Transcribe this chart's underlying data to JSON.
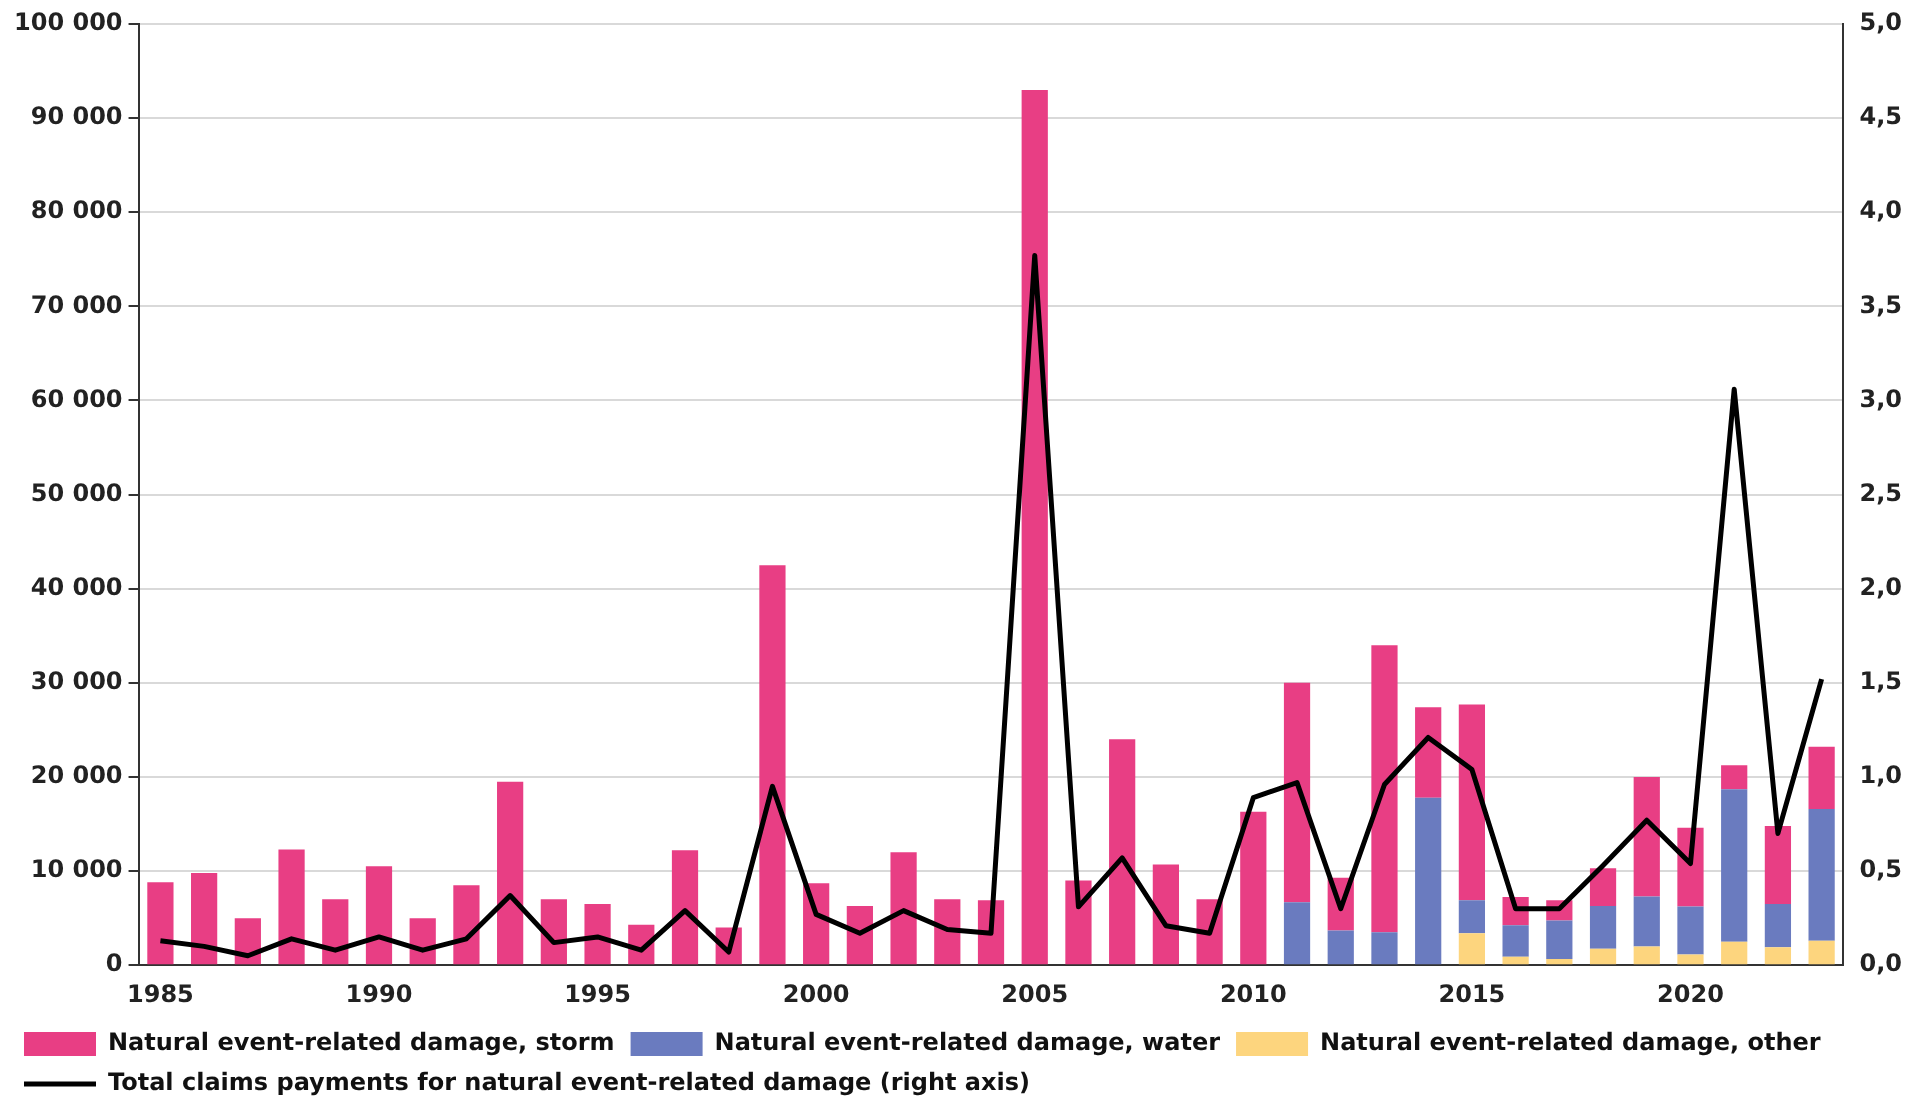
{
  "chart_data": {
    "type": "bar",
    "stacked": true,
    "categories": [
      "1985",
      null,
      null,
      null,
      null,
      "1990",
      null,
      null,
      null,
      null,
      "1995",
      null,
      null,
      null,
      null,
      "2000",
      null,
      null,
      null,
      null,
      "2005",
      null,
      null,
      null,
      null,
      "2010",
      null,
      null,
      null,
      null,
      "2015",
      null,
      null,
      null,
      null,
      "2020",
      null,
      null,
      null
    ],
    "series": [
      {
        "name": "Natural event-related damage, other",
        "color": "#fdd57e",
        "values": [
          null,
          null,
          null,
          null,
          null,
          null,
          null,
          null,
          null,
          null,
          null,
          null,
          null,
          null,
          null,
          null,
          null,
          null,
          null,
          null,
          null,
          null,
          null,
          null,
          null,
          null,
          null,
          null,
          null,
          null,
          3400,
          900,
          650,
          1750,
          2000,
          1150,
          2500,
          1900,
          2600
        ]
      },
      {
        "name": "Natural event-related damage, water",
        "color": "#6a7bbf",
        "values": [
          null,
          null,
          null,
          null,
          null,
          null,
          null,
          null,
          null,
          null,
          null,
          null,
          null,
          null,
          null,
          null,
          null,
          null,
          null,
          null,
          null,
          null,
          null,
          null,
          null,
          null,
          6700,
          3700,
          3500,
          17800,
          3500,
          3350,
          4100,
          4550,
          5300,
          5100,
          16200,
          4600,
          14000
        ]
      },
      {
        "name": "Natural event-related damage, storm",
        "color": "#e83e84",
        "values": [
          8800,
          9800,
          5000,
          12300,
          7000,
          10500,
          5000,
          8500,
          19500,
          7000,
          6500,
          4300,
          12200,
          4000,
          42500,
          8700,
          6300,
          12000,
          7000,
          6900,
          93000,
          9000,
          24000,
          10700,
          7000,
          16300,
          23300,
          5600,
          30500,
          9600,
          20800,
          3000,
          2150,
          4000,
          12700,
          8350,
          2550,
          8300,
          6600
        ]
      },
      {
        "name": "Total claims payments for natural event-related damage (right axis)",
        "type": "line",
        "axis": "y2",
        "color": "#000000",
        "values": [
          0.13,
          0.1,
          0.05,
          0.14,
          0.08,
          0.15,
          0.08,
          0.14,
          0.37,
          0.12,
          0.15,
          0.08,
          0.29,
          0.07,
          0.95,
          0.27,
          0.17,
          0.29,
          0.19,
          0.17,
          3.77,
          0.31,
          0.57,
          0.21,
          0.17,
          0.89,
          0.97,
          0.3,
          0.96,
          1.21,
          1.04,
          0.3,
          0.3,
          0.53,
          0.77,
          0.54,
          3.06,
          0.7,
          1.52
        ]
      }
    ],
    "ylim": [
      0,
      100000
    ],
    "yticks": [
      0,
      {
        "value": 10000,
        "label": "10 000"
      },
      {
        "value": 20000,
        "label": "20 000"
      },
      {
        "value": 30000,
        "label": "30 000"
      },
      {
        "value": 40000,
        "label": "40 000"
      },
      {
        "value": 50000,
        "label": "50 000"
      },
      {
        "value": 60000,
        "label": "60 000"
      },
      {
        "value": 70000,
        "label": "70 000"
      },
      {
        "value": 80000,
        "label": "80 000"
      },
      {
        "value": 90000,
        "label": "90 000"
      },
      {
        "value": 100000,
        "label": "100 000"
      }
    ],
    "y2lim": [
      0,
      5
    ],
    "y2ticks": [
      {
        "value": 0,
        "label": "0,0"
      },
      {
        "value": 0.5,
        "label": "0,5"
      },
      {
        "value": 1,
        "label": "1,0"
      },
      {
        "value": 1.5,
        "label": "1,5"
      },
      {
        "value": 2,
        "label": "2,0"
      },
      {
        "value": 2.5,
        "label": "2,5"
      },
      {
        "value": 3,
        "label": "3,0"
      },
      {
        "value": 3.5,
        "label": "3,5"
      },
      {
        "value": 4,
        "label": "4,0"
      },
      {
        "value": 4.5,
        "label": "4,5"
      },
      {
        "value": 5,
        "label": "5,0"
      }
    ],
    "grid": "y",
    "legend": "bottom",
    "marker": "none"
  }
}
